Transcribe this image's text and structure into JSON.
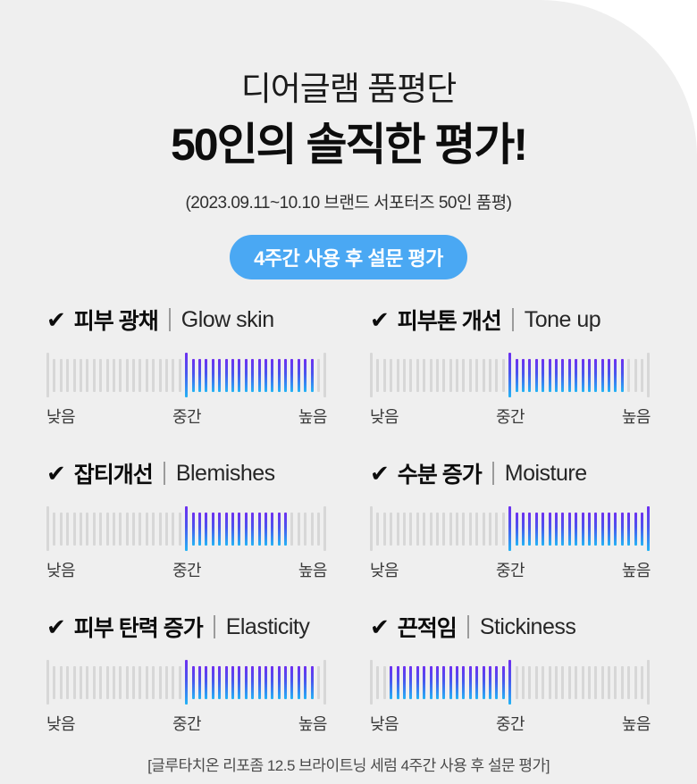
{
  "page": {
    "outside_bg": "#ffffff",
    "card_bg": "#efefef"
  },
  "icons": {
    "check": "✔"
  },
  "header": {
    "title_line1": "디어글램 품평단",
    "title_line2": "50인의 솔직한 평가!",
    "subtitle": "(2023.09.11~10.10 브랜드 서포터즈 50인 품평)",
    "badge": "4주간 사용 후 설문 평가",
    "badge_color": "#4aa8f3"
  },
  "scale_colors": {
    "inactive": "#d7d7d7",
    "active_gradient_top": "#6d2ff0",
    "active_gradient_bottom": "#23b4f5"
  },
  "ratings": [
    {
      "ko": "피부 광채",
      "en": "Glow skin",
      "low": "낮음",
      "mid": "중간",
      "high": "높음",
      "bars": {
        "total": 43,
        "mid_index": 21,
        "active_from": 21,
        "active_to": 40
      }
    },
    {
      "ko": "피부톤 개선",
      "en": "Tone up",
      "low": "낮음",
      "mid": "중간",
      "high": "높음",
      "bars": {
        "total": 43,
        "mid_index": 21,
        "active_from": 21,
        "active_to": 38
      }
    },
    {
      "ko": "잡티개선",
      "en": "Blemishes",
      "low": "낮음",
      "mid": "중간",
      "high": "높음",
      "bars": {
        "total": 43,
        "mid_index": 21,
        "active_from": 21,
        "active_to": 36
      }
    },
    {
      "ko": "수분 증가",
      "en": "Moisture",
      "low": "낮음",
      "mid": "중간",
      "high": "높음",
      "bars": {
        "total": 43,
        "mid_index": 21,
        "active_from": 21,
        "active_to": 42
      }
    },
    {
      "ko": "피부 탄력 증가",
      "en": "Elasticity",
      "low": "낮음",
      "mid": "중간",
      "high": "높음",
      "bars": {
        "total": 43,
        "mid_index": 21,
        "active_from": 21,
        "active_to": 40
      }
    },
    {
      "ko": "끈적임",
      "en": "Stickiness",
      "low": "낮음",
      "mid": "중간",
      "high": "높음",
      "bars": {
        "total": 43,
        "mid_index": 21,
        "active_from": 3,
        "active_to": 21
      }
    }
  ],
  "footer": "[글루타치온 리포좀 12.5 브라이트닝 세럼 4주간 사용 후 설문 평가]",
  "chart_data": {
    "type": "rating-scale",
    "title": "디어글램 품평단 50인의 솔직한 평가!",
    "subtitle": "(2023.09.11~10.10 브랜드 서포터즈 50인 품평)",
    "condition": "4주간 사용 후 설문 평가",
    "scale": {
      "min_label": "낮음",
      "mid_label": "중간",
      "max_label": "높음",
      "range_pct": [
        0,
        100
      ]
    },
    "items": [
      {
        "label_ko": "피부 광채",
        "label_en": "Glow skin",
        "active_range_pct": [
          50,
          95
        ]
      },
      {
        "label_ko": "피부톤 개선",
        "label_en": "Tone up",
        "active_range_pct": [
          50,
          90
        ]
      },
      {
        "label_ko": "잡티개선",
        "label_en": "Blemishes",
        "active_range_pct": [
          50,
          86
        ]
      },
      {
        "label_ko": "수분 증가",
        "label_en": "Moisture",
        "active_range_pct": [
          50,
          100
        ]
      },
      {
        "label_ko": "피부 탄력 증가",
        "label_en": "Elasticity",
        "active_range_pct": [
          50,
          95
        ]
      },
      {
        "label_ko": "끈적임",
        "label_en": "Stickiness",
        "active_range_pct": [
          7,
          50
        ]
      }
    ],
    "legend_position": "none",
    "grid": false
  }
}
